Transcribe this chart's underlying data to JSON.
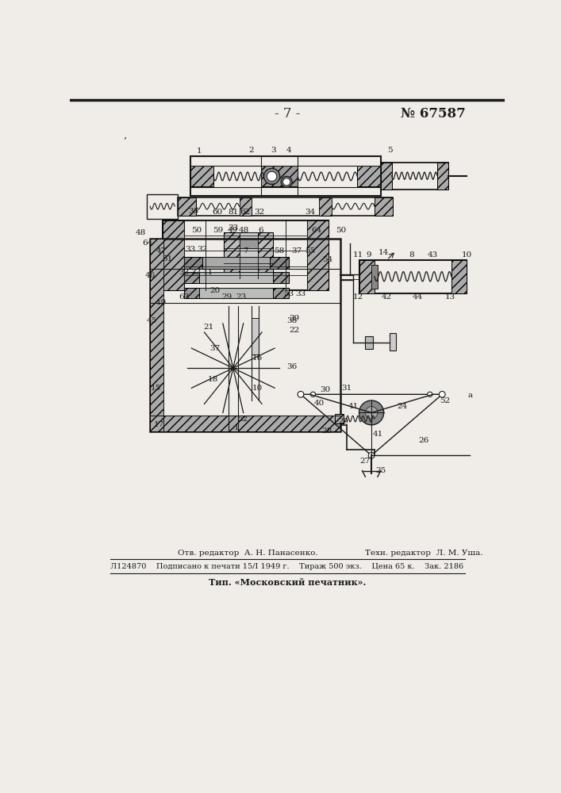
{
  "page_number": "- 7 -",
  "patent_number": "№ 67587",
  "footer_line1_left": "Отв. редактор  А. Н. Панасенко.",
  "footer_line1_right": "Техн. редактор  Л. М. Уша.",
  "footer_line2": "Л124870    Подписано к печати 15/І 1949 г.    Тираж 500 экз.    Цена 65 к.    Зак. 2186",
  "footer_line3": "Тип. «Московский печатник».",
  "bg_color": "#f0ede8",
  "line_color": "#1a1a1a",
  "hatch_color": "#888888"
}
